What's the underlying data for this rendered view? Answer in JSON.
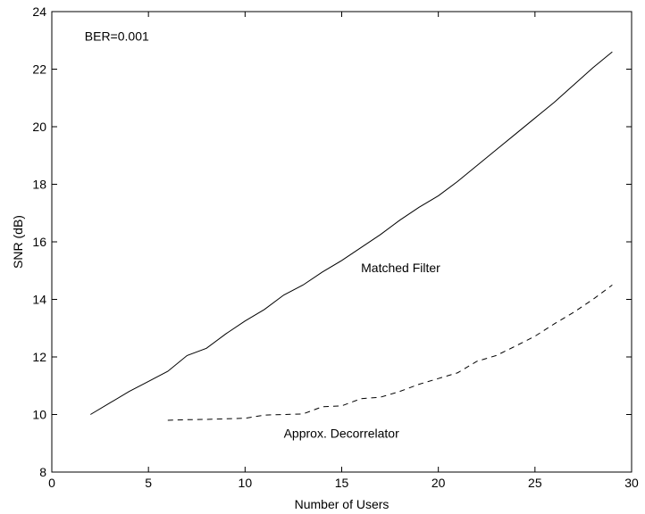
{
  "chart_data": {
    "type": "line",
    "title": "",
    "xlabel": "Number of Users",
    "ylabel": "SNR (dB)",
    "xlim": [
      0,
      30
    ],
    "ylim": [
      8,
      24
    ],
    "xticks": [
      0,
      5,
      10,
      15,
      20,
      25,
      30
    ],
    "yticks": [
      8,
      10,
      12,
      14,
      16,
      18,
      20,
      22,
      24
    ],
    "grid": false,
    "legend": "none",
    "annotations": [
      {
        "text": "BER=0.001",
        "x": 1.7,
        "y": 23.0
      },
      {
        "text": "Matched Filter",
        "x": 16.0,
        "y": 14.95
      },
      {
        "text": "Approx. Decorrelator",
        "x": 12.0,
        "y": 9.2
      }
    ],
    "series": [
      {
        "style": "solid",
        "color": "#000000",
        "x": [
          2,
          3,
          4,
          5,
          6,
          7,
          8,
          9,
          10,
          11,
          12,
          13,
          14,
          15,
          16,
          17,
          18,
          19,
          20,
          21,
          22,
          23,
          24,
          25,
          26,
          27,
          28,
          29
        ],
        "y": [
          10.0,
          10.4,
          10.8,
          11.15,
          11.5,
          12.05,
          12.3,
          12.8,
          13.25,
          13.65,
          14.15,
          14.5,
          14.95,
          15.35,
          15.8,
          16.25,
          16.75,
          17.2,
          17.6,
          18.1,
          18.65,
          19.2,
          19.75,
          20.3,
          20.85,
          21.45,
          22.05,
          22.6
        ]
      },
      {
        "style": "dashed",
        "color": "#000000",
        "x": [
          6,
          7,
          8,
          9,
          10,
          11,
          12,
          13,
          14,
          15,
          16,
          17,
          18,
          19,
          20,
          21,
          22,
          23,
          24,
          25,
          26,
          27,
          28,
          29
        ],
        "y": [
          9.8,
          9.82,
          9.83,
          9.85,
          9.87,
          9.98,
          10.0,
          10.02,
          10.27,
          10.3,
          10.55,
          10.6,
          10.8,
          11.05,
          11.25,
          11.45,
          11.85,
          12.05,
          12.38,
          12.72,
          13.15,
          13.55,
          14.0,
          14.5
        ]
      }
    ]
  }
}
